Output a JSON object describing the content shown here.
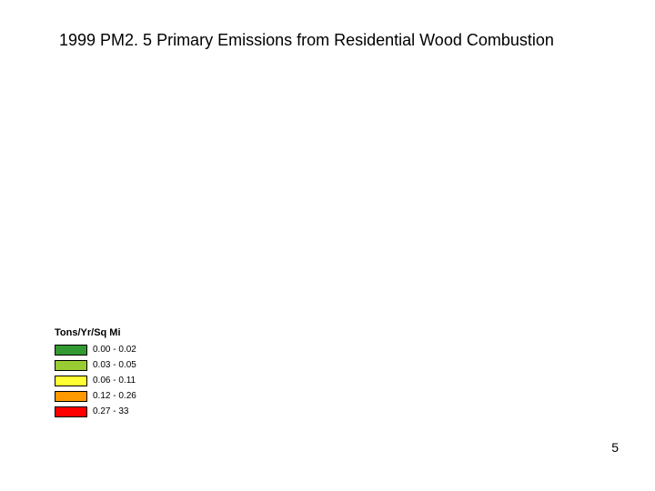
{
  "title": "1999 PM2. 5 Primary Emissions from Residential Wood Combustion",
  "page_number": "5",
  "legend": {
    "title": "Tons/Yr/Sq Mi",
    "title_fontsize": 11,
    "label_fontsize": 10,
    "swatch_width": 36,
    "swatch_height": 12,
    "border_color": "#000000",
    "items": [
      {
        "label": "0.00 - 0.02",
        "color": "#339933"
      },
      {
        "label": "0.03 - 0.05",
        "color": "#99cc33"
      },
      {
        "label": "0.06 - 0.11",
        "color": "#ffff33"
      },
      {
        "label": "0.12 - 0.26",
        "color": "#ff9900"
      },
      {
        "label": "0.27 - 33",
        "color": "#ff0000"
      }
    ]
  },
  "background_color": "#ffffff",
  "title_fontsize": 18,
  "page_num_fontsize": 14
}
